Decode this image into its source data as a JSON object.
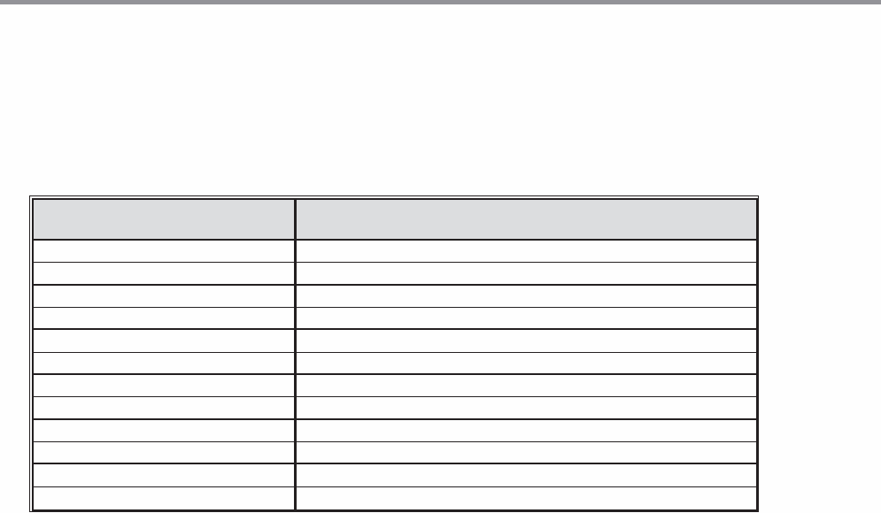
{
  "table": {
    "header": [
      "",
      ""
    ],
    "rows": [
      [
        "",
        ""
      ],
      [
        "",
        ""
      ],
      [
        "",
        ""
      ],
      [
        "",
        ""
      ],
      [
        "",
        ""
      ],
      [
        "",
        ""
      ],
      [
        "",
        ""
      ],
      [
        "",
        ""
      ],
      [
        "",
        ""
      ],
      [
        "",
        ""
      ],
      [
        "",
        ""
      ],
      [
        "",
        ""
      ]
    ]
  },
  "colors": {
    "header_bg": "#dcdddf",
    "top_bar": "#939398",
    "border": "#231f20"
  }
}
